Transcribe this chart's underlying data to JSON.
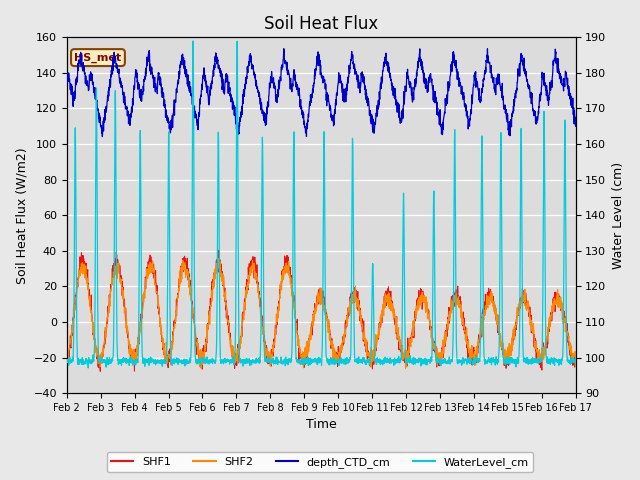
{
  "title": "Soil Heat Flux",
  "xlabel": "Time",
  "ylabel_left": "Soil Heat Flux (W/m2)",
  "ylabel_right": "Water Level (cm)",
  "ylim_left": [
    -40,
    160
  ],
  "ylim_right": [
    90,
    190
  ],
  "fig_facecolor": "#e8e8e8",
  "plot_bg_color": "#dcdcdc",
  "annotation_text": "HS_met",
  "annotation_bg": "#f5f0c0",
  "annotation_border": "#8b4000",
  "annotation_text_color": "#8b0000",
  "colors": {
    "SHF1": "#ee1111",
    "SHF2": "#ff8800",
    "depth_CTD_cm": "#0000cc",
    "WaterLevel_cm": "#00ccdd"
  },
  "xtick_labels": [
    "Feb 2",
    "Feb 3",
    "Feb 4",
    "Feb 5",
    "Feb 6",
    "Feb 7",
    "Feb 8",
    "Feb 9",
    "Feb 10",
    "Feb 11",
    "Feb 12",
    "Feb 13",
    "Feb 14",
    "Feb 15",
    "Feb 16",
    "Feb 17"
  ],
  "n_days": 15,
  "pts_per_day": 144
}
